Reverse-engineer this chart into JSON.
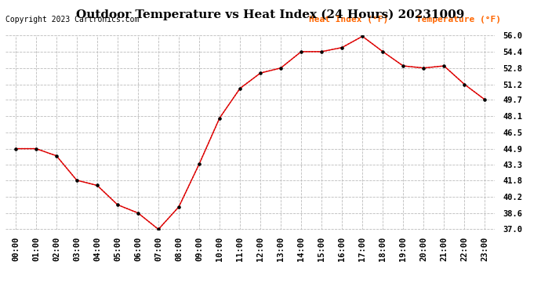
{
  "title": "Outdoor Temperature vs Heat Index (24 Hours) 20231009",
  "copyright": "Copyright 2023 Cartronics.com",
  "legend_heat_index": "Heat Index (°F)",
  "legend_temperature": "Temperature (°F)",
  "hours": [
    "00:00",
    "01:00",
    "02:00",
    "03:00",
    "04:00",
    "05:00",
    "06:00",
    "07:00",
    "08:00",
    "09:00",
    "10:00",
    "11:00",
    "12:00",
    "13:00",
    "14:00",
    "15:00",
    "16:00",
    "17:00",
    "18:00",
    "19:00",
    "20:00",
    "21:00",
    "22:00",
    "23:00"
  ],
  "temp_vals": [
    44.9,
    44.9,
    44.2,
    41.8,
    41.3,
    39.4,
    38.6,
    37.0,
    39.2,
    43.4,
    47.9,
    50.8,
    52.3,
    52.8,
    54.4,
    54.4,
    54.8,
    55.9,
    54.4,
    53.0,
    52.8,
    53.0,
    51.2,
    49.7
  ],
  "heat_vals": [
    44.9,
    44.9,
    44.2,
    41.8,
    41.3,
    39.4,
    38.6,
    37.0,
    39.2,
    43.4,
    47.9,
    50.8,
    52.3,
    52.8,
    54.4,
    54.4,
    54.8,
    55.9,
    54.4,
    53.0,
    52.8,
    53.0,
    51.2,
    49.7
  ],
  "ylim_min": 37.0,
  "ylim_max": 56.0,
  "yticks": [
    37.0,
    38.6,
    40.2,
    41.8,
    43.3,
    44.9,
    46.5,
    48.1,
    49.7,
    51.2,
    52.8,
    54.4,
    56.0
  ],
  "line_color": "#dd0000",
  "marker_color": "#000000",
  "bg_color": "#ffffff",
  "grid_color": "#bbbbbb",
  "title_color": "#000000",
  "copyright_color": "#000000",
  "legend_color": "#ff6600",
  "title_fontsize": 11,
  "copyright_fontsize": 7,
  "legend_fontsize": 8,
  "tick_fontsize": 7.5
}
